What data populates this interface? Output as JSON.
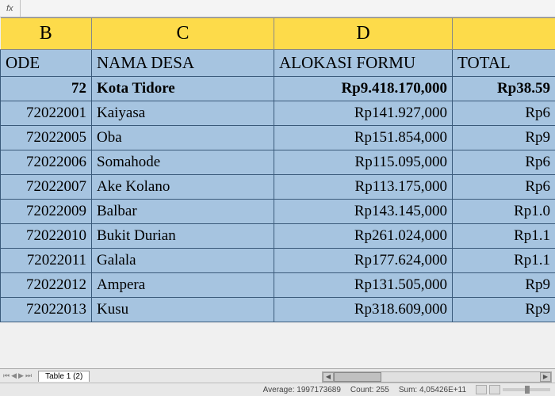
{
  "formula_bar": {
    "fx": "fx",
    "value": ""
  },
  "columns": {
    "letters": [
      "B",
      "C",
      "D",
      ""
    ],
    "widths": [
      115,
      230,
      225,
      130
    ],
    "headers": [
      "ODE",
      "NAMA DESA",
      "ALOKASI FORMU",
      "TOTAL "
    ],
    "align": [
      "l",
      "l",
      "l",
      "l"
    ]
  },
  "summary_row": {
    "code": "72",
    "name": "Kota  Tidore",
    "alloc": "Rp9.418.170,000",
    "total": "Rp38.59"
  },
  "rows": [
    {
      "code": "72022001",
      "name": "Kaiyasa",
      "alloc": "Rp141.927,000",
      "total": "Rp6"
    },
    {
      "code": "72022005",
      "name": "Oba",
      "alloc": "Rp151.854,000",
      "total": "Rp9"
    },
    {
      "code": "72022006",
      "name": "Somahode",
      "alloc": "Rp115.095,000",
      "total": "Rp6"
    },
    {
      "code": "72022007",
      "name": "Ake Kolano",
      "alloc": "Rp113.175,000",
      "total": "Rp6"
    },
    {
      "code": "72022009",
      "name": "Balbar",
      "alloc": "Rp143.145,000",
      "total": "Rp1.0"
    },
    {
      "code": "72022010",
      "name": "Bukit  Durian",
      "alloc": "Rp261.024,000",
      "total": "Rp1.1"
    },
    {
      "code": "72022011",
      "name": "Galala",
      "alloc": "Rp177.624,000",
      "total": "Rp1.1"
    },
    {
      "code": "72022012",
      "name": "Ampera",
      "alloc": "Rp131.505,000",
      "total": "Rp9"
    },
    {
      "code": "72022013",
      "name": "Kusu",
      "alloc": "Rp318.609,000",
      "total": "Rp9"
    }
  ],
  "tabs": {
    "active": "Table 1 (2)"
  },
  "status": {
    "average": "Average: 1997173689",
    "count": "Count: 255",
    "sum": "Sum: 4,05426E+11"
  }
}
